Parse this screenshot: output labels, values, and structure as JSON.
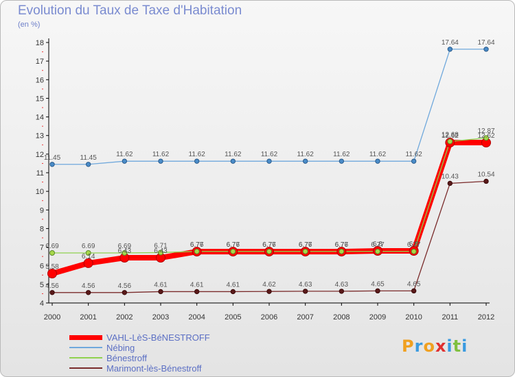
{
  "header": {
    "title": "Evolution du Taux de Taxe d'Habitation",
    "subtitle": "(en %)"
  },
  "logo": {
    "letters": [
      "P",
      "r",
      "o",
      "x",
      "i",
      "t",
      "i"
    ],
    "colors": [
      "#f0a020",
      "#3b9be0",
      "#f0a020",
      "#e03030",
      "#3b9be0",
      "#80c040",
      "#3b9be0"
    ]
  },
  "chart_data": {
    "type": "line",
    "title": "Evolution du Taux de Taxe d'Habitation",
    "ylabel": "(en %)",
    "xlabel": "",
    "ylim": [
      4,
      18
    ],
    "yticks": [
      4,
      5,
      6,
      7,
      8,
      9,
      10,
      11,
      12,
      13,
      14,
      15,
      16,
      17,
      18
    ],
    "categories": [
      "2000",
      "2001",
      "2002",
      "2003",
      "2004",
      "2005",
      "2006",
      "2007",
      "2008",
      "2009",
      "2010",
      "2011",
      "2012"
    ],
    "series": [
      {
        "name": "VAHL-LèS-BéNESTROFF",
        "color": "#ff0000",
        "values": [
          5.58,
          6.14,
          6.43,
          6.43,
          6.76,
          6.76,
          6.76,
          6.76,
          6.76,
          6.8,
          6.8,
          12.62,
          12.62
        ],
        "labels": [
          "5.58",
          "6.14",
          "6.43",
          "6.43",
          "6.76",
          "6.76",
          "6.76",
          "6.76",
          "6.76",
          "6.8",
          "6.8",
          "12.62",
          "12.62"
        ]
      },
      {
        "name": "Nébing",
        "color": "#6fa8dc",
        "values": [
          11.45,
          11.45,
          11.62,
          11.62,
          11.62,
          11.62,
          11.62,
          11.62,
          11.62,
          11.62,
          11.62,
          17.64,
          17.64
        ],
        "labels": [
          "11.45",
          "11.45",
          "11.62",
          "11.62",
          "11.62",
          "11.62",
          "11.62",
          "11.62",
          "11.62",
          "11.62",
          "11.62",
          "17.64",
          "17.64"
        ]
      },
      {
        "name": "Bénestroff",
        "color": "#8fd14f",
        "values": [
          6.69,
          6.69,
          6.69,
          6.71,
          6.77,
          6.77,
          6.77,
          6.77,
          6.77,
          6.77,
          6.77,
          12.68,
          12.87
        ],
        "labels": [
          "6.69",
          "6.69",
          "6.69",
          "6.71",
          "6.77",
          "6.77",
          "6.77",
          "6.77",
          "6.77",
          "6.77",
          "6.77",
          "12.68",
          "12.87"
        ]
      },
      {
        "name": "Marimont-lès-Bénestroff",
        "color": "#7a2b2b",
        "values": [
          4.56,
          4.56,
          4.56,
          4.61,
          4.61,
          4.61,
          4.62,
          4.63,
          4.63,
          4.65,
          4.65,
          10.43,
          10.54
        ],
        "labels": [
          "4.56",
          "4.56",
          "4.56",
          "4.61",
          "4.61",
          "4.61",
          "4.62",
          "4.63",
          "4.63",
          "4.65",
          "4.65",
          "10.43",
          "10.54"
        ]
      }
    ],
    "legend_position": "bottom-left",
    "grid": false
  }
}
